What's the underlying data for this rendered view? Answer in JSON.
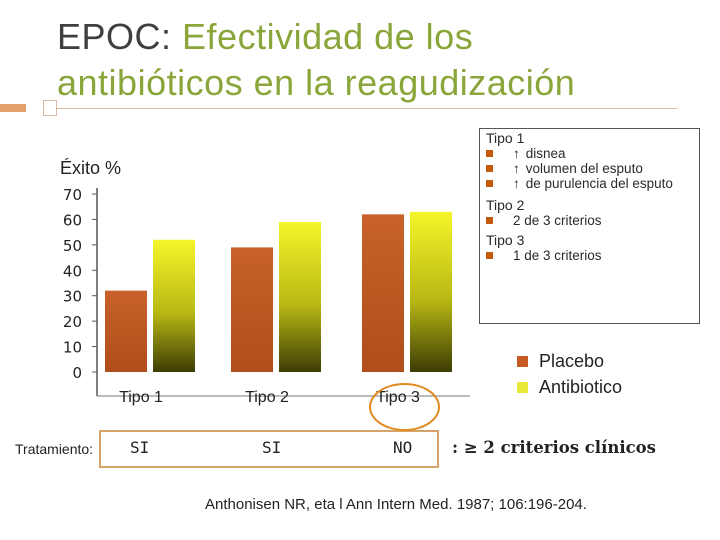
{
  "title": {
    "prefix": "EPOC: ",
    "main": "Efectividad de los antibióticos en la reagudización"
  },
  "chart_data": {
    "type": "bar",
    "ylabel": "Éxito %",
    "ylim": [
      0,
      70
    ],
    "yticks": [
      0,
      10,
      20,
      30,
      40,
      50,
      60,
      70
    ],
    "categories": [
      "Tipo 1",
      "Tipo 2",
      "Tipo 3"
    ],
    "series": [
      {
        "name": "Placebo",
        "color": "#c55a23",
        "values": [
          32,
          49,
          62
        ]
      },
      {
        "name": "Antibiotico",
        "color": "#e2e21e",
        "values": [
          52,
          59,
          63
        ]
      }
    ]
  },
  "criteria": [
    {
      "heading": "Tipo 1",
      "items": [
        {
          "arrow": "↑",
          "text": "disnea"
        },
        {
          "arrow": "↑",
          "text": "volumen del esputo"
        },
        {
          "arrow": "↑",
          "text": "de purulencia del esputo"
        }
      ]
    },
    {
      "heading": "Tipo 2",
      "items": [
        {
          "arrow": "",
          "text": "2 de 3 criterios"
        }
      ]
    },
    {
      "heading": "Tipo 3",
      "items": [
        {
          "arrow": "",
          "text": "1 de 3 criterios"
        }
      ]
    }
  ],
  "legend": [
    {
      "label": "Placebo",
      "color": "#c55a23"
    },
    {
      "label": "Antibiotico",
      "color": "#e8e83a"
    }
  ],
  "treatment": {
    "label": "Tratamiento:",
    "values": [
      "SI",
      "SI",
      "NO"
    ]
  },
  "criteria_note": ": ≥ 2 criterios clínicos",
  "reference": "Anthonisen NR, eta l Ann Intern Med. 1987; 106:196-204."
}
